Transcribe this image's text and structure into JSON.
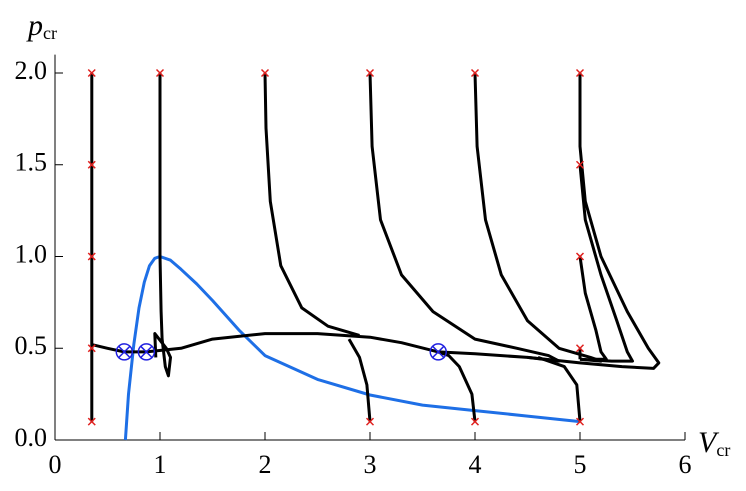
{
  "chart_data": {
    "type": "line",
    "xlabel": {
      "text": "V",
      "subscript": "cr"
    },
    "ylabel": {
      "text": "p",
      "subscript": "cr"
    },
    "xlim": [
      0,
      6
    ],
    "ylim": [
      0,
      2.1
    ],
    "xticks": [
      0,
      1,
      2,
      3,
      4,
      5,
      6
    ],
    "yticks": [
      {
        "value": 0,
        "label": "0.0"
      },
      {
        "value": 0.5,
        "label": "0.5"
      },
      {
        "value": 1,
        "label": "1.0"
      },
      {
        "value": 1.5,
        "label": "1.5"
      },
      {
        "value": 2,
        "label": "2.0"
      }
    ],
    "series": [
      {
        "color": "#1e6fe6",
        "x": [
          0.67,
          0.7,
          0.75,
          0.8,
          0.85,
          0.9,
          0.95,
          1.0,
          1.1,
          1.2,
          1.35,
          1.5,
          1.75,
          2.0,
          2.5,
          3.0,
          3.5,
          4.0,
          4.5,
          5.0
        ],
        "y": [
          0,
          0.25,
          0.52,
          0.72,
          0.86,
          0.95,
          0.99,
          1.0,
          0.98,
          0.93,
          0.85,
          0.76,
          0.6,
          0.46,
          0.33,
          0.245,
          0.19,
          0.16,
          0.13,
          0.1
        ]
      },
      {
        "color": "#000000",
        "x": [
          0.35,
          0.35,
          0.35
        ],
        "y": [
          2.0,
          1.0,
          0.1
        ]
      },
      {
        "color": "#000000",
        "x": [
          0.35,
          0.5,
          0.66,
          0.87
        ],
        "y": [
          0.52,
          0.5,
          0.48,
          0.48
        ]
      },
      {
        "color": "#000000",
        "x": [
          1.0,
          1.0,
          1.0,
          1.01,
          1.02,
          1.05,
          1.08,
          1.1,
          1.06,
          0.95,
          0.96
        ],
        "y": [
          2.0,
          1.5,
          1.0,
          0.7,
          0.55,
          0.4,
          0.35,
          0.45,
          0.5,
          0.58,
          0.45
        ]
      },
      {
        "color": "#000000",
        "x": [
          0.87,
          1.2,
          1.5,
          2.0,
          2.5,
          3.0,
          3.3,
          3.65
        ],
        "y": [
          0.48,
          0.5,
          0.55,
          0.58,
          0.58,
          0.56,
          0.53,
          0.48
        ]
      },
      {
        "color": "#000000",
        "x": [
          2.0,
          2.01,
          2.05,
          2.15,
          2.35,
          2.6,
          2.9
        ],
        "y": [
          2.0,
          1.7,
          1.3,
          0.95,
          0.72,
          0.62,
          0.57
        ]
      },
      {
        "color": "#000000",
        "x": [
          3.0,
          3.02,
          3.1,
          3.3,
          3.6,
          4.0,
          4.4,
          4.7,
          4.8,
          4.5,
          4.0,
          3.65
        ],
        "y": [
          2.0,
          1.6,
          1.2,
          0.9,
          0.7,
          0.55,
          0.5,
          0.46,
          0.43,
          0.45,
          0.47,
          0.48
        ]
      },
      {
        "color": "#000000",
        "x": [
          4.0,
          4.02,
          4.1,
          4.25,
          4.5,
          4.8,
          5.1,
          5.2,
          5.0
        ],
        "y": [
          2.0,
          1.6,
          1.2,
          0.9,
          0.65,
          0.5,
          0.45,
          0.43,
          0.44
        ]
      },
      {
        "color": "#000000",
        "x": [
          5.0,
          5.0,
          5.05,
          5.2,
          5.45,
          5.65,
          5.75,
          5.7,
          5.4,
          5.0,
          4.5
        ],
        "y": [
          2.0,
          1.6,
          1.3,
          1.0,
          0.7,
          0.5,
          0.42,
          0.39,
          0.4,
          0.42,
          0.45
        ]
      },
      {
        "color": "#000000",
        "x": [
          5.0,
          5.05,
          5.2,
          5.35,
          5.45,
          5.5,
          5.3,
          5.0
        ],
        "y": [
          1.5,
          1.2,
          0.9,
          0.65,
          0.48,
          0.43,
          0.43,
          0.44
        ]
      },
      {
        "color": "#000000",
        "x": [
          5.0,
          5.05,
          5.15,
          5.2,
          5.25,
          5.1
        ],
        "y": [
          1.0,
          0.8,
          0.6,
          0.48,
          0.44,
          0.44
        ]
      },
      {
        "color": "#000000",
        "x": [
          5.0,
          5.0
        ],
        "y": [
          0.5,
          0.44
        ]
      },
      {
        "color": "#000000",
        "x": [
          5.0,
          4.97,
          4.85,
          4.6
        ],
        "y": [
          0.1,
          0.3,
          0.4,
          0.45
        ]
      },
      {
        "color": "#000000",
        "x": [
          4.0,
          3.97,
          3.85,
          3.75,
          3.65
        ],
        "y": [
          0.1,
          0.25,
          0.4,
          0.46,
          0.48
        ]
      },
      {
        "color": "#000000",
        "x": [
          3.0,
          2.97,
          2.9,
          2.8
        ],
        "y": [
          0.1,
          0.3,
          0.45,
          0.55
        ]
      }
    ],
    "start_points": {
      "color": "#e0201e",
      "x": [
        0.35,
        0.35,
        0.35,
        0.35,
        0.35,
        1,
        2,
        3,
        4,
        5,
        5,
        5,
        5,
        5,
        4,
        3
      ],
      "y": [
        0.1,
        0.5,
        1.0,
        1.5,
        2.0,
        2,
        2,
        2,
        2,
        2,
        1.5,
        1.0,
        0.5,
        0.1,
        0.1,
        0.1
      ]
    },
    "fixed_points": {
      "color": "#2020e0",
      "x": [
        0.66,
        0.87,
        3.65
      ],
      "y": [
        0.48,
        0.48,
        0.48
      ]
    }
  }
}
